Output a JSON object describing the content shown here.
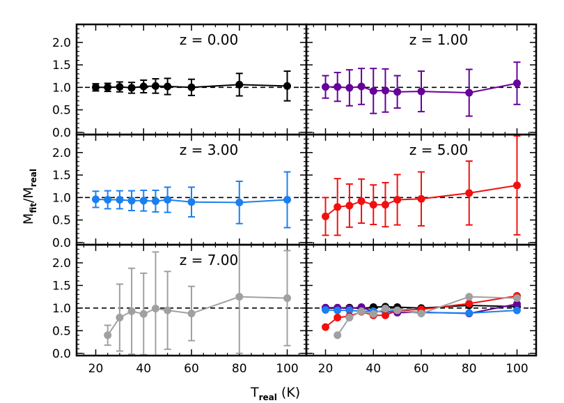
{
  "colors": {
    "z0": "#000000",
    "z1": "#660099",
    "z3": "#1a7ff0",
    "z5": "#f01010",
    "z7": "#a0a0a0"
  },
  "axes": {
    "y_label_main": "M",
    "y_label_num_sub": "fit",
    "y_label_slash": "/M",
    "y_label_den_sub": "real",
    "x_label_main": "T",
    "x_label_sub": "real",
    "x_label_unit": " (K)"
  },
  "chart_data": {
    "type": "line",
    "layout": "3x2 panel grid",
    "x": [
      20,
      25,
      30,
      35,
      40,
      45,
      50,
      60,
      80,
      100
    ],
    "xlim": [
      12,
      108
    ],
    "ylim": [
      -0.05,
      2.4
    ],
    "x_ticks": [
      "20",
      "40",
      "60",
      "80",
      "100"
    ],
    "x_tick_values": [
      20,
      40,
      60,
      80,
      100
    ],
    "y_ticks": [
      "0.0",
      "0.5",
      "1.0",
      "1.5",
      "2.0"
    ],
    "y_tick_values": [
      0.0,
      0.5,
      1.0,
      1.5,
      2.0
    ],
    "reference_line": 1.0,
    "xlabel": "T_real (K)",
    "ylabel": "M_fit/M_real",
    "series": [
      {
        "key": "z0",
        "name": "z  =  0.00",
        "color": "#000000",
        "x": [
          20,
          25,
          30,
          35,
          40,
          45,
          50,
          60,
          80,
          100
        ],
        "values": [
          1.0,
          1.0,
          1.01,
          0.99,
          1.02,
          1.03,
          1.02,
          1.0,
          1.06,
          1.03
        ],
        "err": [
          0.08,
          0.09,
          0.11,
          0.12,
          0.14,
          0.16,
          0.18,
          0.18,
          0.25,
          0.33
        ]
      },
      {
        "key": "z1",
        "name": "z  =  1.00",
        "color": "#660099",
        "x": [
          20,
          25,
          30,
          35,
          40,
          45,
          50,
          60,
          80,
          100
        ],
        "values": [
          1.01,
          1.01,
          0.99,
          1.02,
          0.92,
          0.93,
          0.9,
          0.91,
          0.88,
          1.09
        ],
        "err": [
          0.25,
          0.32,
          0.4,
          0.4,
          0.5,
          0.48,
          0.36,
          0.45,
          0.52,
          0.47
        ]
      },
      {
        "key": "z3",
        "name": "z  =  3.00",
        "color": "#1a7ff0",
        "x": [
          20,
          25,
          30,
          35,
          40,
          45,
          50,
          60,
          80,
          100
        ],
        "values": [
          0.96,
          0.95,
          0.95,
          0.93,
          0.93,
          0.92,
          0.95,
          0.9,
          0.89,
          0.95
        ],
        "err": [
          0.18,
          0.2,
          0.2,
          0.22,
          0.23,
          0.24,
          0.28,
          0.33,
          0.47,
          0.62
        ]
      },
      {
        "key": "z5",
        "name": "z  =  5.00",
        "color": "#f01010",
        "x": [
          20,
          25,
          30,
          35,
          40,
          45,
          50,
          60,
          80,
          100
        ],
        "values": [
          0.58,
          0.79,
          0.82,
          0.92,
          0.84,
          0.84,
          0.95,
          0.97,
          1.1,
          1.27
        ],
        "err": [
          0.42,
          0.63,
          0.48,
          0.49,
          0.44,
          0.49,
          0.56,
          0.6,
          0.71,
          1.1
        ]
      },
      {
        "key": "z7",
        "name": "z  =  7.00",
        "color": "#a0a0a0",
        "x": [
          25,
          30,
          35,
          40,
          45,
          50,
          60,
          80,
          100
        ],
        "values": [
          0.4,
          0.79,
          0.93,
          0.87,
          0.99,
          0.95,
          0.88,
          1.25,
          1.22
        ],
        "err": [
          0.22,
          0.74,
          0.95,
          0.9,
          1.25,
          0.86,
          0.6,
          1.25,
          1.05
        ]
      }
    ],
    "panels": [
      {
        "row": 0,
        "col": 0,
        "label": "z  =  0.00",
        "series": [
          "z0"
        ]
      },
      {
        "row": 0,
        "col": 1,
        "label": "z  =  1.00",
        "series": [
          "z1"
        ]
      },
      {
        "row": 1,
        "col": 0,
        "label": "z  =  3.00",
        "series": [
          "z3"
        ]
      },
      {
        "row": 1,
        "col": 1,
        "label": "z  =  5.00",
        "series": [
          "z5"
        ]
      },
      {
        "row": 2,
        "col": 0,
        "label": "z  =  7.00",
        "series": [
          "z7"
        ]
      },
      {
        "row": 2,
        "col": 1,
        "label": "",
        "series": [
          "z0",
          "z1",
          "z3",
          "z5",
          "z7"
        ],
        "no_errorbars": true
      }
    ]
  }
}
